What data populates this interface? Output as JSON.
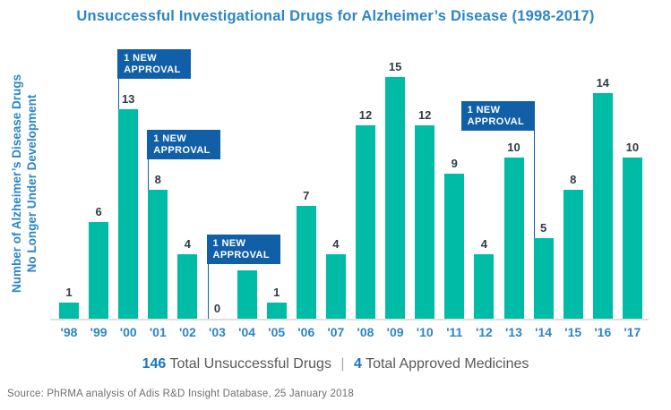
{
  "title": "Unsuccessful Investigational Drugs for Alzheimer’s Disease (1998-2017)",
  "y_axis": {
    "label_line1": "Number of Alzheimer’s Disease Drugs",
    "label_line2": "No Longer Under Development"
  },
  "chart_data": {
    "type": "bar",
    "title": "Unsuccessful Investigational Drugs for Alzheimer’s Disease (1998-2017)",
    "categories": [
      "'98",
      "'99",
      "'00",
      "'01",
      "'02",
      "'03",
      "'04",
      "'05",
      "'06",
      "'07",
      "'08",
      "'09",
      "'10",
      "'11",
      "'12",
      "'13",
      "'14",
      "'15",
      "'16",
      "'17"
    ],
    "values": [
      1,
      6,
      13,
      8,
      4,
      0,
      3,
      1,
      7,
      4,
      12,
      15,
      12,
      9,
      4,
      10,
      5,
      8,
      14,
      10
    ],
    "xlabel": "",
    "ylabel": "Number of Alzheimer’s Disease Drugs No Longer Under Development",
    "ylim": [
      0,
      15
    ],
    "grid": false,
    "legend": "none",
    "bar_color": "#00BBA6",
    "annotations": [
      {
        "label": "1 NEW APPROVAL",
        "year": "'00"
      },
      {
        "label": "1 NEW APPROVAL",
        "year": "'01"
      },
      {
        "label": "1 NEW APPROVAL",
        "year": "'03"
      },
      {
        "label": "1 NEW APPROVAL",
        "year": "'14"
      }
    ]
  },
  "summary": {
    "unsuccessful_count": "146",
    "unsuccessful_label": "Total Unsuccessful Drugs",
    "separator": "|",
    "approved_count": "4",
    "approved_label": "Total Approved Medicines"
  },
  "source": "Source: PhRMA analysis of Adis R&D Insight Database, 25 January 2018",
  "colors": {
    "bar": "#00BBA6",
    "title_blue": "#2C86C5",
    "callout_blue": "#1160A7",
    "value_label": "#2F3B45",
    "footer_text": "#58595B",
    "footer_number": "#1B75BC",
    "source_gray": "#6D6E71",
    "baseline_gray": "#DFDFDF"
  }
}
